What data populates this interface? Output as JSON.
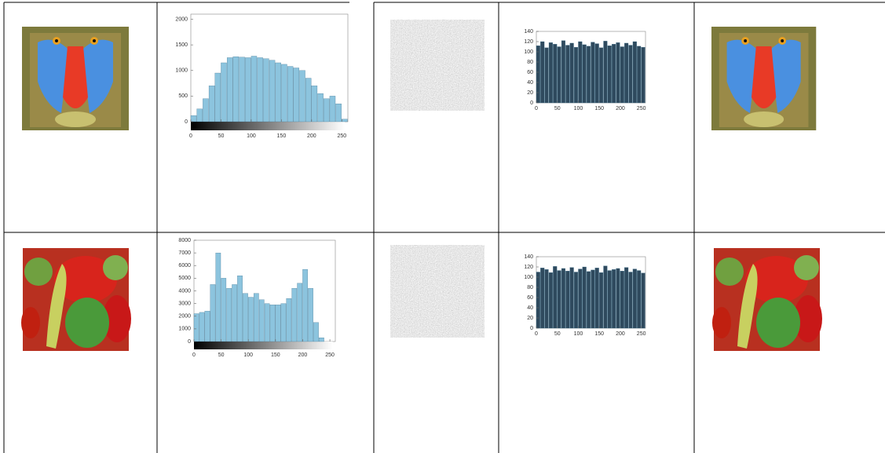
{
  "histograms": [
    {
      "type": "bar",
      "color": "#8cc4de",
      "xlim": [
        0,
        260
      ],
      "ylim": [
        0,
        2100
      ],
      "xticks": [
        0,
        50,
        100,
        150,
        200,
        250
      ],
      "yticks": [
        0,
        500,
        1000,
        1500,
        2000
      ],
      "bins": [
        0,
        10,
        20,
        30,
        40,
        50,
        60,
        70,
        80,
        90,
        100,
        110,
        120,
        130,
        140,
        150,
        160,
        170,
        180,
        190,
        200,
        210,
        220,
        230,
        240,
        250,
        260
      ],
      "values": [
        120,
        250,
        450,
        700,
        950,
        1150,
        1250,
        1270,
        1260,
        1250,
        1280,
        1250,
        1230,
        1200,
        1150,
        1120,
        1080,
        1050,
        1000,
        850,
        700,
        550,
        450,
        500,
        350,
        50
      ]
    },
    {
      "type": "bar",
      "color": "#8cc4de",
      "xlim": [
        0,
        260
      ],
      "ylim": [
        0,
        8000
      ],
      "xticks": [
        0,
        50,
        100,
        150,
        200,
        250
      ],
      "yticks": [
        0,
        1000,
        2000,
        3000,
        4000,
        5000,
        6000,
        7000,
        8000
      ],
      "bins": [
        0,
        10,
        20,
        30,
        40,
        50,
        60,
        70,
        80,
        90,
        100,
        110,
        120,
        130,
        140,
        150,
        160,
        170,
        180,
        190,
        200,
        210,
        220,
        230,
        240,
        250,
        260
      ],
      "values": [
        2200,
        2300,
        2400,
        4500,
        7000,
        5000,
        4200,
        4500,
        5200,
        3800,
        3500,
        3800,
        3300,
        3000,
        2900,
        2900,
        3000,
        3400,
        4200,
        4600,
        5700,
        4200,
        1500,
        300,
        0,
        0
      ]
    },
    {
      "type": "bar",
      "color": "#2f4a5e",
      "xlim": [
        0,
        260
      ],
      "ylim": [
        0,
        140
      ],
      "xticks": [
        0,
        50,
        100,
        150,
        200,
        250
      ],
      "yticks": [
        0,
        20,
        40,
        60,
        80,
        100,
        120,
        140
      ],
      "bins": [
        0,
        10,
        20,
        30,
        40,
        50,
        60,
        70,
        80,
        90,
        100,
        110,
        120,
        130,
        140,
        150,
        160,
        170,
        180,
        190,
        200,
        210,
        220,
        230,
        240,
        250,
        260
      ],
      "values": [
        112,
        120,
        108,
        118,
        115,
        110,
        122,
        113,
        117,
        109,
        120,
        114,
        111,
        119,
        116,
        108,
        121,
        112,
        115,
        118,
        110,
        117,
        113,
        120,
        111,
        109
      ]
    },
    {
      "type": "bar",
      "color": "#2f4a5e",
      "xlim": [
        0,
        260
      ],
      "ylim": [
        0,
        140
      ],
      "xticks": [
        0,
        50,
        100,
        150,
        200,
        250
      ],
      "yticks": [
        0,
        20,
        40,
        60,
        80,
        100,
        120,
        140
      ],
      "bins": [
        0,
        10,
        20,
        30,
        40,
        50,
        60,
        70,
        80,
        90,
        100,
        110,
        120,
        130,
        140,
        150,
        160,
        170,
        180,
        190,
        200,
        210,
        220,
        230,
        240,
        250,
        260
      ],
      "values": [
        110,
        118,
        115,
        109,
        121,
        113,
        117,
        112,
        119,
        110,
        116,
        120,
        111,
        114,
        118,
        109,
        122,
        113,
        115,
        117,
        112,
        119,
        110,
        116,
        113,
        108
      ]
    }
  ]
}
